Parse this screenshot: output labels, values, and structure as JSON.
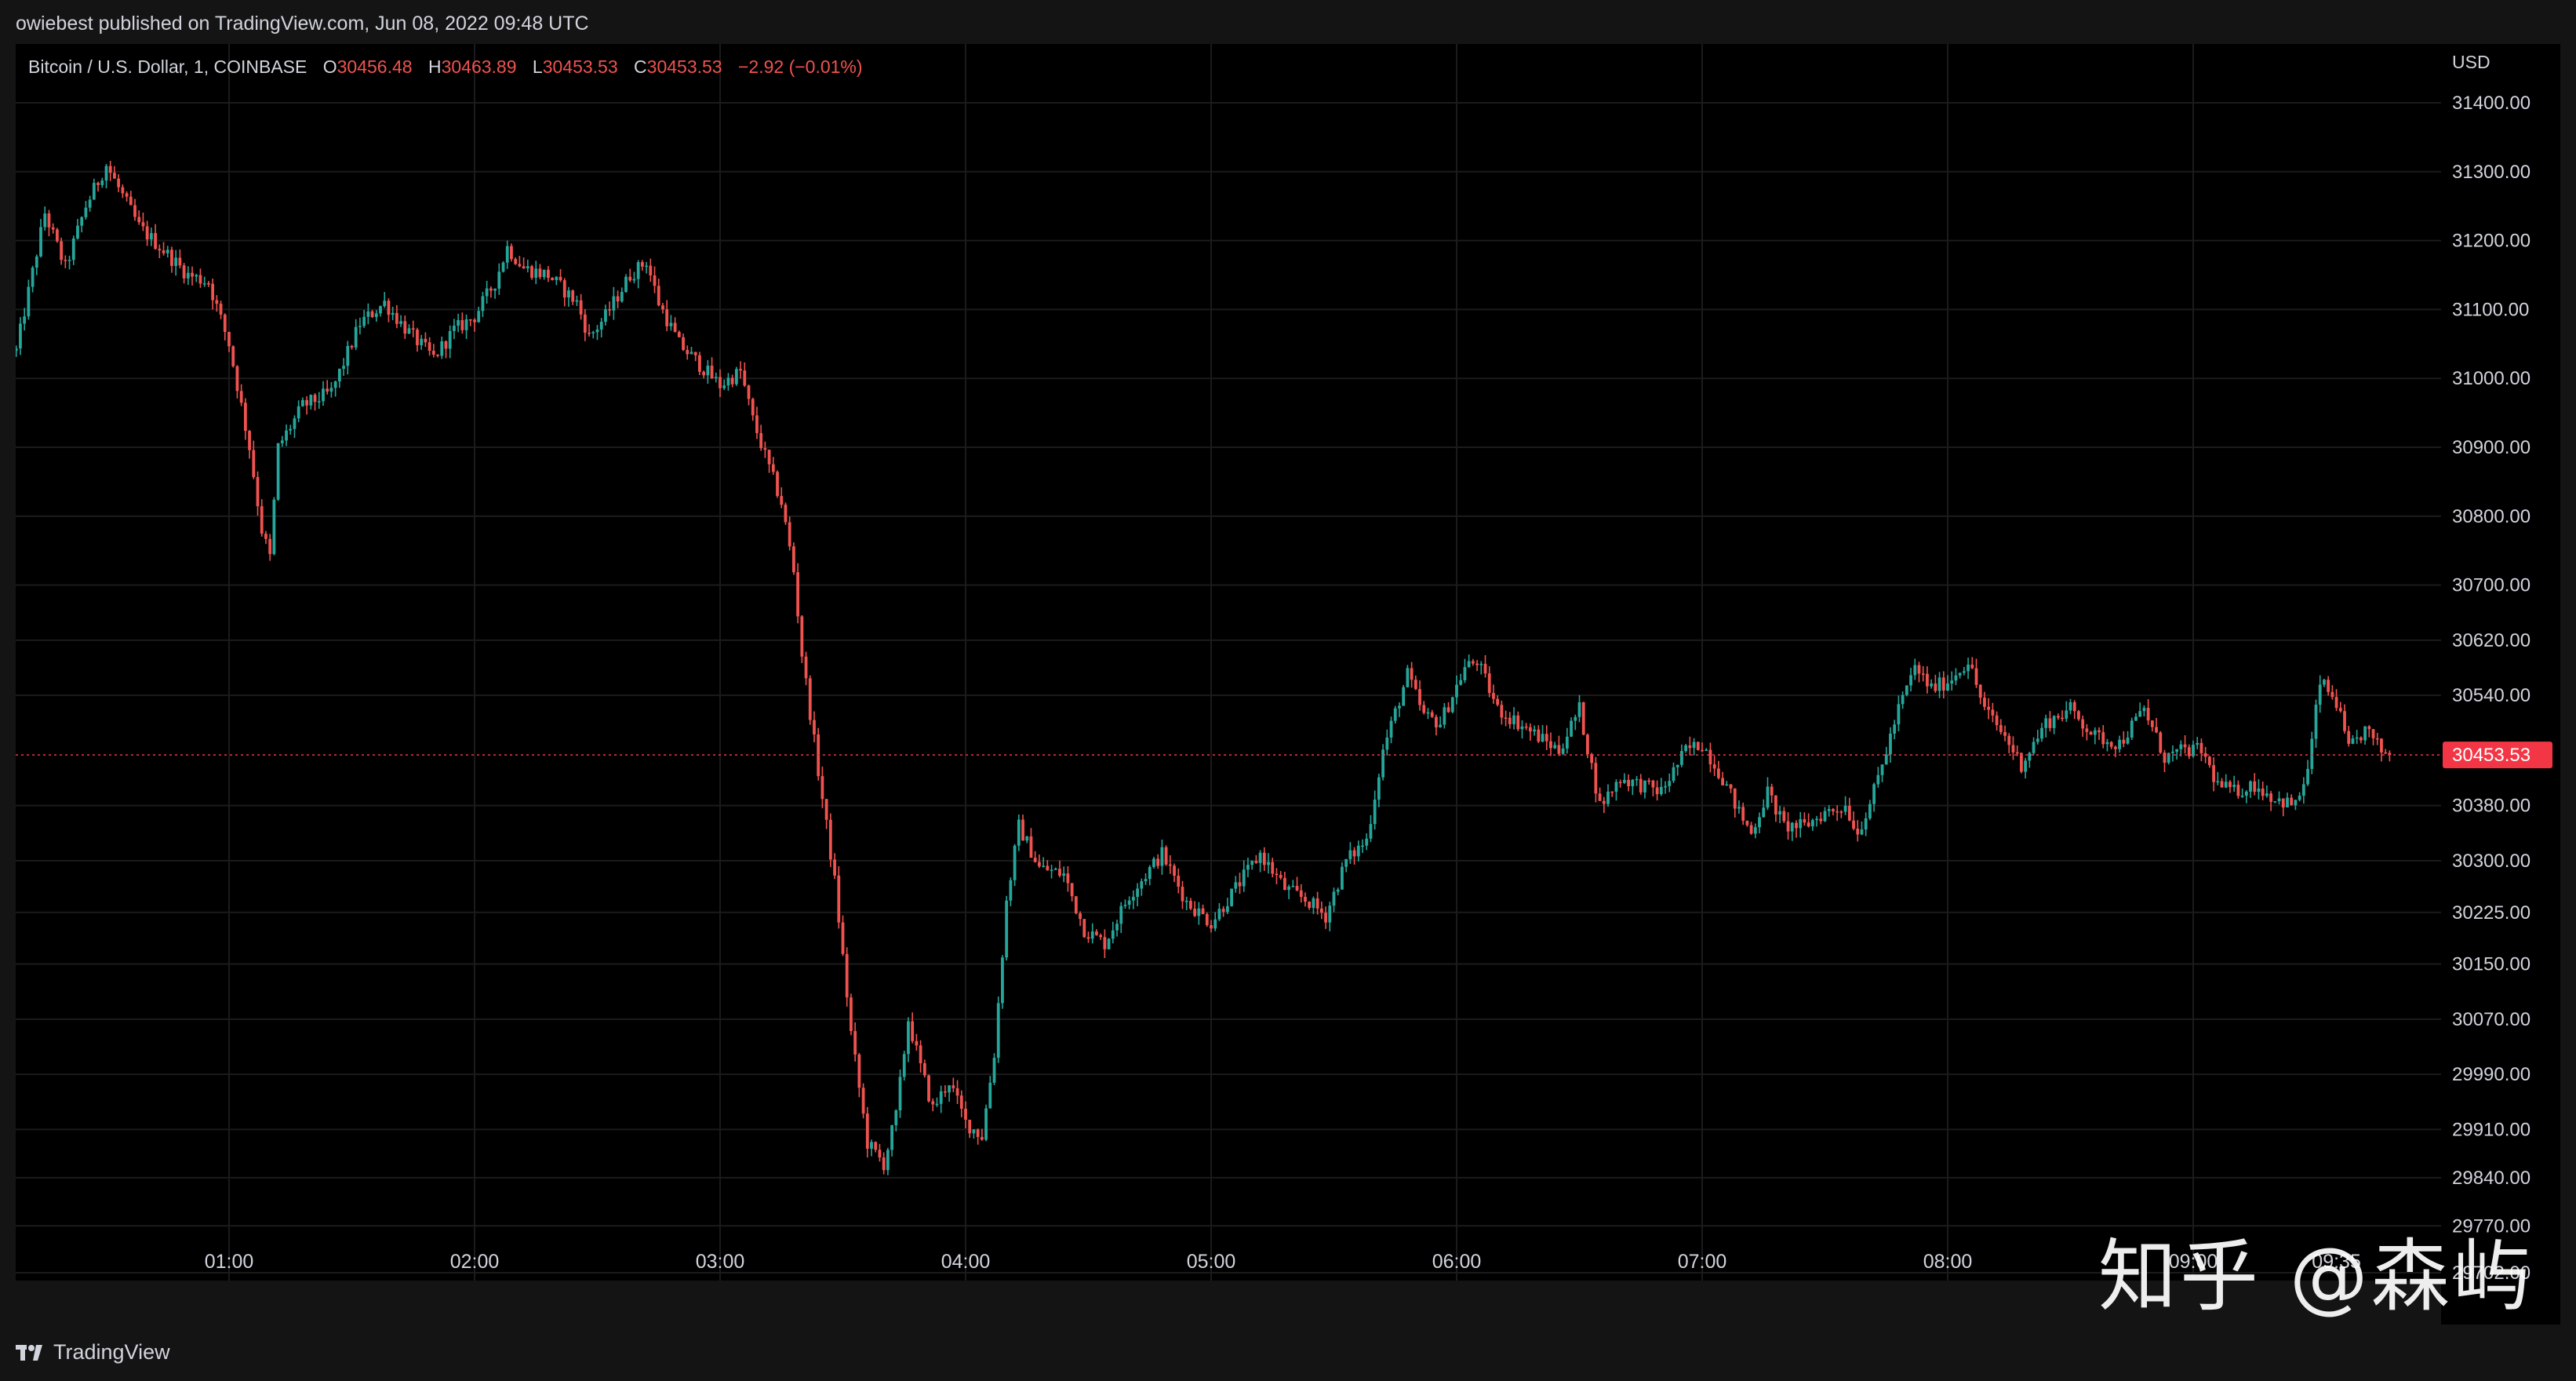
{
  "header": {
    "published": "owiebest published on TradingView.com, Jun 08, 2022 09:48 UTC"
  },
  "legend": {
    "symbol": "Bitcoin / U.S. Dollar, 1, COINBASE",
    "o_label": "O",
    "o_value": "30456.48",
    "h_label": "H",
    "h_value": "30463.89",
    "l_label": "L",
    "l_value": "30453.53",
    "c_label": "C",
    "c_value": "30453.53",
    "change": "−2.92 (−0.01%)"
  },
  "footer": {
    "brand": "TradingView"
  },
  "watermark": {
    "text": "知乎 @森屿"
  },
  "colors": {
    "up": "#26a69a",
    "down": "#ef5350",
    "background": "#000000",
    "grid": "#1b1b1b",
    "last_price_bg": "#f23645"
  },
  "chart_data": {
    "type": "candlestick",
    "currency_label": "USD",
    "x_range": [
      "00:08",
      "09:48"
    ],
    "ylim": [
      29702,
      31450
    ],
    "y_ticks": [
      {
        "label": "31400.00",
        "value": 31400
      },
      {
        "label": "31300.00",
        "value": 31300
      },
      {
        "label": "31200.00",
        "value": 31200
      },
      {
        "label": "31100.00",
        "value": 31100
      },
      {
        "label": "31000.00",
        "value": 31000
      },
      {
        "label": "30900.00",
        "value": 30900
      },
      {
        "label": "30800.00",
        "value": 30800
      },
      {
        "label": "30700.00",
        "value": 30700
      },
      {
        "label": "30620.00",
        "value": 30620
      },
      {
        "label": "30540.00",
        "value": 30540
      },
      {
        "label": "30380.00",
        "value": 30380
      },
      {
        "label": "30300.00",
        "value": 30300
      },
      {
        "label": "30225.00",
        "value": 30225
      },
      {
        "label": "30150.00",
        "value": 30150
      },
      {
        "label": "30070.00",
        "value": 30070
      },
      {
        "label": "29990.00",
        "value": 29990
      },
      {
        "label": "29910.00",
        "value": 29910
      },
      {
        "label": "29840.00",
        "value": 29840
      },
      {
        "label": "29770.00",
        "value": 29770
      },
      {
        "label": "29702.00",
        "value": 29702
      }
    ],
    "x_ticks": [
      {
        "label": "01:00",
        "time": "01:00"
      },
      {
        "label": "02:00",
        "time": "02:00"
      },
      {
        "label": "03:00",
        "time": "03:00"
      },
      {
        "label": "04:00",
        "time": "04:00"
      },
      {
        "label": "05:00",
        "time": "05:00"
      },
      {
        "label": "06:00",
        "time": "06:00"
      },
      {
        "label": "07:00",
        "time": "07:00"
      },
      {
        "label": "08:00",
        "time": "08:00"
      },
      {
        "label": "09:00",
        "time": "09:00"
      },
      {
        "label": "09:35",
        "time": "09:35"
      }
    ],
    "last_price": {
      "label": "30453.53",
      "value": 30453.53
    },
    "close_path": [
      [
        "00:08",
        31040
      ],
      [
        "00:15",
        31240
      ],
      [
        "00:20",
        31160
      ],
      [
        "00:25",
        31250
      ],
      [
        "00:30",
        31310
      ],
      [
        "00:38",
        31220
      ],
      [
        "00:45",
        31180
      ],
      [
        "00:50",
        31150
      ],
      [
        "00:55",
        31140
      ],
      [
        "01:00",
        31050
      ],
      [
        "01:05",
        30900
      ],
      [
        "01:08",
        30780
      ],
      [
        "01:10",
        30740
      ],
      [
        "01:12",
        30900
      ],
      [
        "01:18",
        30960
      ],
      [
        "01:25",
        30980
      ],
      [
        "01:32",
        31080
      ],
      [
        "01:38",
        31110
      ],
      [
        "01:42",
        31080
      ],
      [
        "01:45",
        31060
      ],
      [
        "01:50",
        31030
      ],
      [
        "01:55",
        31070
      ],
      [
        "02:00",
        31090
      ],
      [
        "02:05",
        31140
      ],
      [
        "02:08",
        31190
      ],
      [
        "02:12",
        31160
      ],
      [
        "02:18",
        31150
      ],
      [
        "02:25",
        31110
      ],
      [
        "02:28",
        31060
      ],
      [
        "02:32",
        31090
      ],
      [
        "02:38",
        31150
      ],
      [
        "02:42",
        31170
      ],
      [
        "02:45",
        31110
      ],
      [
        "02:50",
        31050
      ],
      [
        "02:55",
        31020
      ],
      [
        "03:00",
        30990
      ],
      [
        "03:05",
        31010
      ],
      [
        "03:08",
        30940
      ],
      [
        "03:12",
        30870
      ],
      [
        "03:15",
        30820
      ],
      [
        "03:18",
        30720
      ],
      [
        "03:20",
        30600
      ],
      [
        "03:24",
        30430
      ],
      [
        "03:28",
        30270
      ],
      [
        "03:32",
        30050
      ],
      [
        "03:36",
        29890
      ],
      [
        "03:40",
        29860
      ],
      [
        "03:43",
        29930
      ],
      [
        "03:46",
        30070
      ],
      [
        "03:49",
        30000
      ],
      [
        "03:52",
        29940
      ],
      [
        "03:56",
        29980
      ],
      [
        "04:00",
        29920
      ],
      [
        "04:04",
        29900
      ],
      [
        "04:07",
        30020
      ],
      [
        "04:10",
        30240
      ],
      [
        "04:13",
        30350
      ],
      [
        "04:18",
        30290
      ],
      [
        "04:24",
        30280
      ],
      [
        "04:29",
        30200
      ],
      [
        "04:34",
        30180
      ],
      [
        "04:40",
        30250
      ],
      [
        "04:48",
        30310
      ],
      [
        "04:54",
        30240
      ],
      [
        "05:00",
        30210
      ],
      [
        "05:06",
        30260
      ],
      [
        "05:12",
        30310
      ],
      [
        "05:18",
        30260
      ],
      [
        "05:24",
        30240
      ],
      [
        "05:28",
        30220
      ],
      [
        "05:33",
        30300
      ],
      [
        "05:38",
        30330
      ],
      [
        "05:42",
        30460
      ],
      [
        "05:48",
        30570
      ],
      [
        "05:52",
        30510
      ],
      [
        "05:56",
        30500
      ],
      [
        "06:02",
        30580
      ],
      [
        "06:05",
        30590
      ],
      [
        "06:10",
        30520
      ],
      [
        "06:15",
        30500
      ],
      [
        "06:20",
        30480
      ],
      [
        "06:25",
        30460
      ],
      [
        "06:30",
        30520
      ],
      [
        "06:35",
        30380
      ],
      [
        "06:40",
        30420
      ],
      [
        "06:45",
        30410
      ],
      [
        "06:50",
        30400
      ],
      [
        "06:56",
        30460
      ],
      [
        "07:00",
        30470
      ],
      [
        "07:05",
        30420
      ],
      [
        "07:09",
        30370
      ],
      [
        "07:12",
        30340
      ],
      [
        "07:16",
        30400
      ],
      [
        "07:20",
        30350
      ],
      [
        "07:25",
        30350
      ],
      [
        "07:30",
        30370
      ],
      [
        "07:35",
        30380
      ],
      [
        "07:38",
        30340
      ],
      [
        "07:42",
        30400
      ],
      [
        "07:48",
        30520
      ],
      [
        "07:52",
        30580
      ],
      [
        "07:56",
        30550
      ],
      [
        "08:00",
        30560
      ],
      [
        "08:05",
        30590
      ],
      [
        "08:09",
        30520
      ],
      [
        "08:14",
        30480
      ],
      [
        "08:18",
        30440
      ],
      [
        "08:24",
        30500
      ],
      [
        "08:30",
        30520
      ],
      [
        "08:36",
        30480
      ],
      [
        "08:42",
        30470
      ],
      [
        "08:48",
        30520
      ],
      [
        "08:53",
        30450
      ],
      [
        "08:58",
        30460
      ],
      [
        "09:02",
        30460
      ],
      [
        "09:06",
        30410
      ],
      [
        "09:10",
        30400
      ],
      [
        "09:15",
        30410
      ],
      [
        "09:20",
        30390
      ],
      [
        "09:25",
        30380
      ],
      [
        "09:28",
        30430
      ],
      [
        "09:31",
        30560
      ],
      [
        "09:35",
        30530
      ],
      [
        "09:38",
        30460
      ],
      [
        "09:42",
        30490
      ],
      [
        "09:46",
        30460
      ],
      [
        "09:48",
        30453.53
      ]
    ]
  }
}
